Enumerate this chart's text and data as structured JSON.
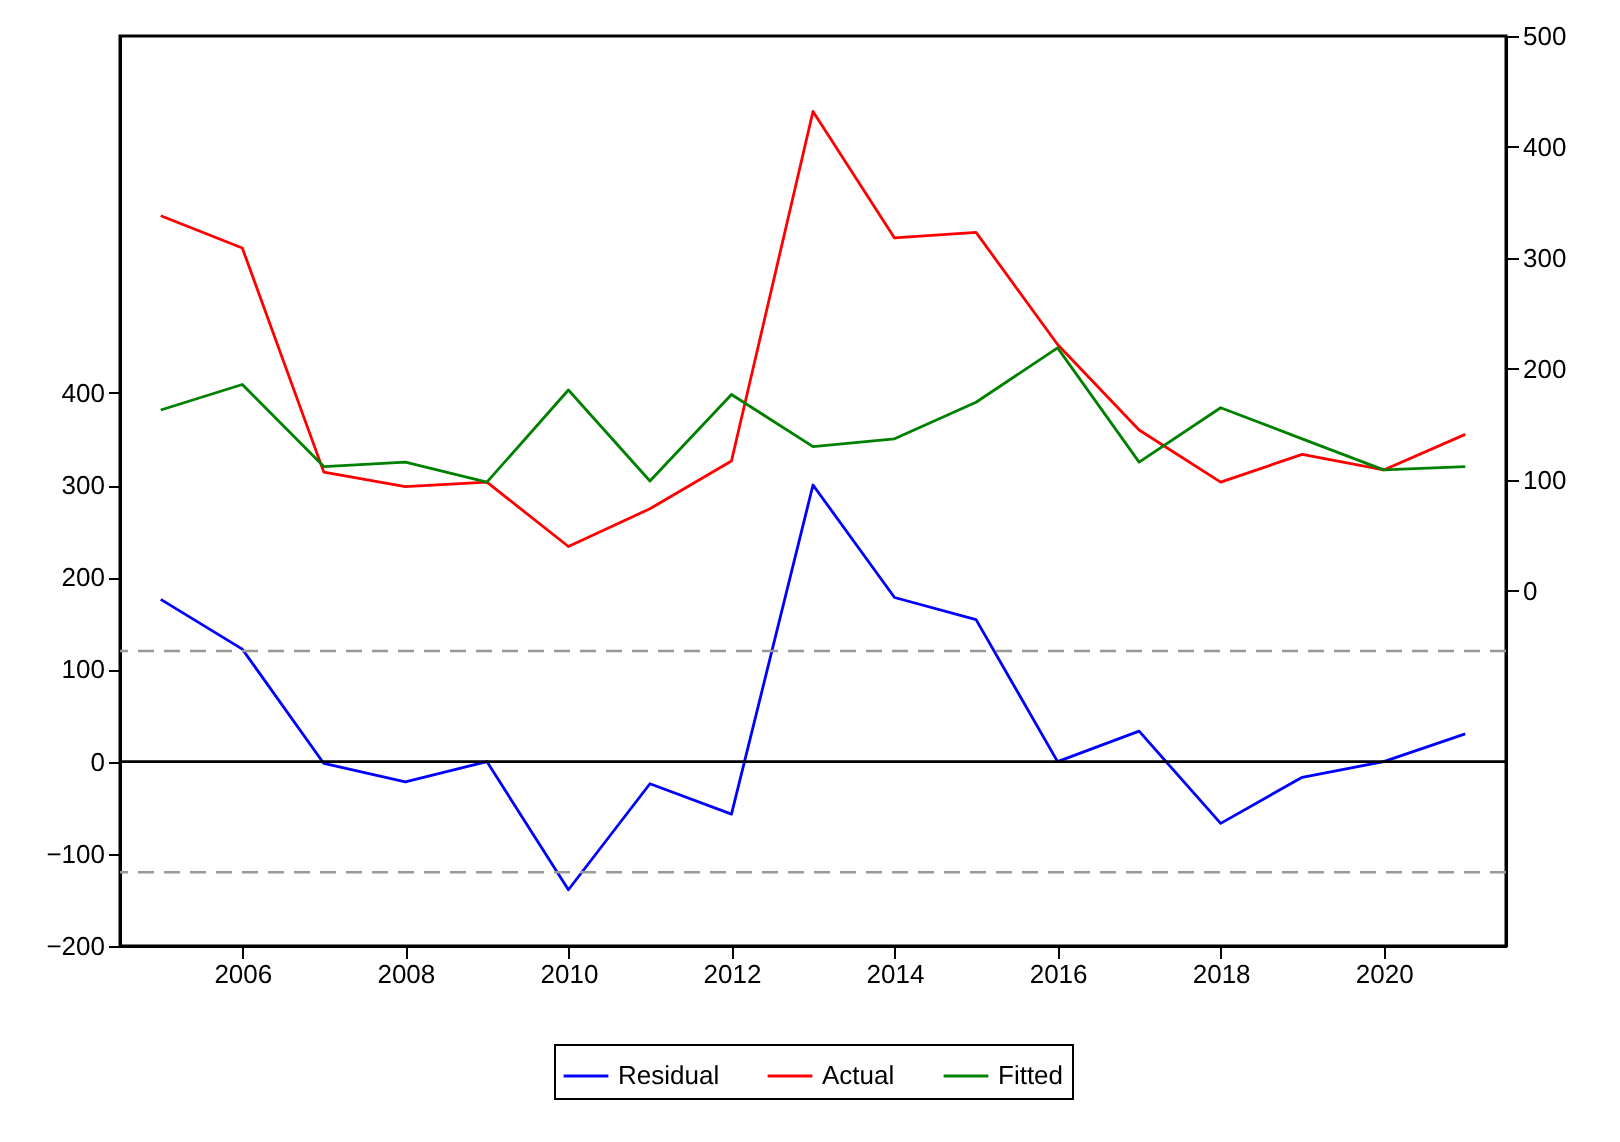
{
  "chart_data": {
    "type": "line",
    "x": [
      2005,
      2006,
      2007,
      2008,
      2009,
      2010,
      2011,
      2012,
      2013,
      2014,
      2015,
      2016,
      2017,
      2018,
      2019,
      2020,
      2021
    ],
    "series": [
      {
        "name": "Residual",
        "color": "#0000ff",
        "values": [
          176,
          122,
          -2,
          -22,
          0,
          -139,
          -24,
          -57,
          300,
          178,
          154,
          0,
          33,
          -67,
          -17,
          0,
          30
        ]
      },
      {
        "name": "Actual",
        "color": "#ff0000",
        "axis": "y2",
        "values": [
          338,
          309,
          107,
          94,
          98,
          40,
          74,
          117,
          432,
          318,
          323,
          222,
          145,
          98,
          123,
          109,
          141
        ]
      },
      {
        "name": "Fitted",
        "color": "#008000",
        "axis": "y2",
        "values": [
          163,
          186,
          112,
          116,
          98,
          181,
          99,
          177,
          130,
          137,
          170,
          219,
          116,
          165,
          137,
          109,
          112
        ]
      }
    ],
    "xlim": [
      2004.5,
      2021.5
    ],
    "xticks": [
      2006,
      2008,
      2010,
      2012,
      2014,
      2016,
      2018,
      2020
    ],
    "ylim": [
      -200,
      787
    ],
    "yticks": [
      -200,
      -100,
      0,
      100,
      200,
      300,
      400
    ],
    "y2lim": [
      -320,
      500
    ],
    "y2ticks": [
      0,
      100,
      200,
      300,
      400,
      500
    ],
    "ref_lines": [
      {
        "axis": "y",
        "value": 120,
        "color": "#999999",
        "line_style": "dashed"
      },
      {
        "axis": "y",
        "value": 0,
        "color": "#000000",
        "line_style": "solid"
      },
      {
        "axis": "y",
        "value": -120,
        "color": "#999999",
        "line_style": "dashed"
      }
    ],
    "grid": false,
    "legend": "bottom",
    "marker": "none",
    "line_style": "solid"
  }
}
